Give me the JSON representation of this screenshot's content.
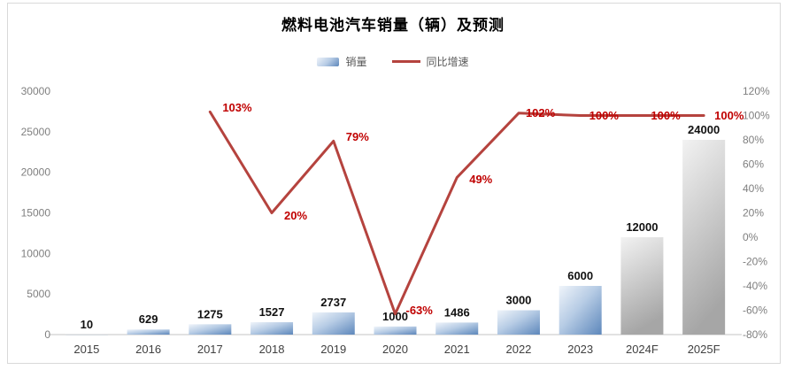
{
  "title": "燃料电池汽车销量（辆）及预测",
  "legend": {
    "sales_label": "销量",
    "growth_label": "同比增速"
  },
  "chart_data": {
    "type": "bar",
    "combo": "bar+line",
    "title": "燃料电池汽车销量（辆）及预测",
    "categories": [
      "2015",
      "2016",
      "2017",
      "2018",
      "2019",
      "2020",
      "2021",
      "2022",
      "2023",
      "2024F",
      "2025F"
    ],
    "series": [
      {
        "name": "销量",
        "type": "bar",
        "axis": "left",
        "values": [
          10,
          629,
          1275,
          1527,
          2737,
          1000,
          1486,
          3000,
          6000,
          12000,
          24000
        ],
        "forecast_start_index": 9
      },
      {
        "name": "同比增速",
        "type": "line",
        "axis": "right",
        "unit": "%",
        "values": [
          null,
          null,
          103,
          20,
          79,
          -63,
          49,
          102,
          100,
          100,
          100
        ],
        "labels": [
          null,
          null,
          "103%",
          "20%",
          "79%",
          "-63%",
          "49%",
          "102%",
          "100%",
          "100%",
          "100%"
        ]
      }
    ],
    "left_axis": {
      "min": 0,
      "max": 30000,
      "step": 5000,
      "ticks": [
        "0",
        "5000",
        "10000",
        "15000",
        "20000",
        "25000",
        "30000"
      ]
    },
    "right_axis": {
      "min": -80,
      "max": 120,
      "step": 20,
      "ticks": [
        "-80%",
        "-60%",
        "-40%",
        "-20%",
        "0%",
        "20%",
        "40%",
        "60%",
        "80%",
        "100%",
        "120%"
      ]
    },
    "grid": false,
    "legend_position": "top"
  },
  "colors": {
    "line": "#b5433e",
    "growth_label": "#c00000",
    "bar_blue_light": "#eff4fa",
    "bar_blue_mid": "#b7cce5",
    "bar_blue_dark": "#5d87bb",
    "bar_gray_light": "#f2f2f2",
    "bar_gray_dark": "#a6a6a6",
    "axis_text": "#7f7f7f",
    "x_axis_text": "#404040",
    "bar_label_text": "#111111",
    "frame_border": "#d9d9d9",
    "baseline": "#d9d9d9"
  }
}
